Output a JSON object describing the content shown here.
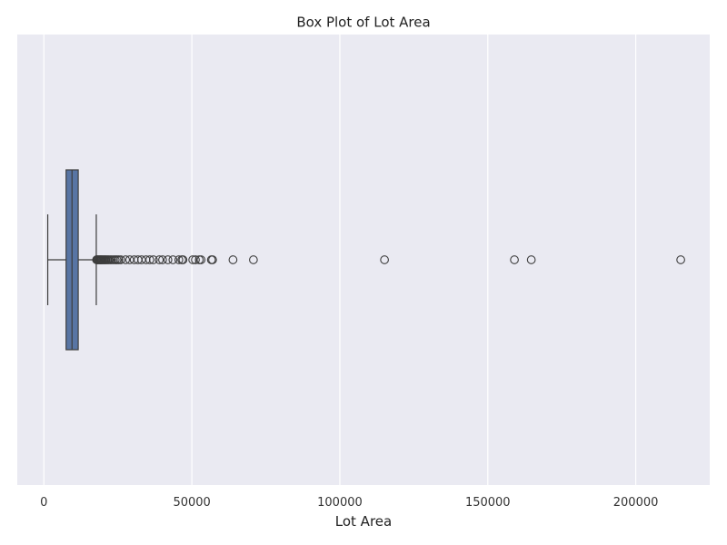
{
  "chart_data": {
    "type": "box",
    "title": "Box Plot of Lot Area",
    "xlabel": "Lot Area",
    "ylabel": "",
    "orientation": "horizontal",
    "xlim": [
      -9000,
      225000
    ],
    "x_ticks": [
      0,
      50000,
      100000,
      150000,
      200000
    ],
    "x_tick_labels": [
      "0",
      "50000",
      "100000",
      "150000",
      "200000"
    ],
    "grid": true,
    "colors": {
      "background": "#eaeaf2",
      "grid": "#ffffff",
      "box_fill": "#5875a4",
      "line": "#3d3d3d"
    },
    "box": {
      "min": 1300,
      "q1": 7500,
      "median": 9500,
      "q3": 11600,
      "whisker_high": 17700
    },
    "outliers": [
      17800,
      18000,
      18200,
      18500,
      18800,
      19000,
      19200,
      19400,
      19600,
      19900,
      20200,
      20500,
      20800,
      21100,
      21500,
      21900,
      22400,
      22900,
      23500,
      24100,
      24700,
      25300,
      26000,
      27600,
      29000,
      30500,
      31800,
      33000,
      34500,
      35800,
      37000,
      39000,
      40100,
      41900,
      43600,
      45600,
      46600,
      47000,
      50300,
      51200,
      52500,
      53100,
      56600,
      57000,
      63900,
      70800,
      115100,
      159000,
      164700,
      215200
    ]
  }
}
